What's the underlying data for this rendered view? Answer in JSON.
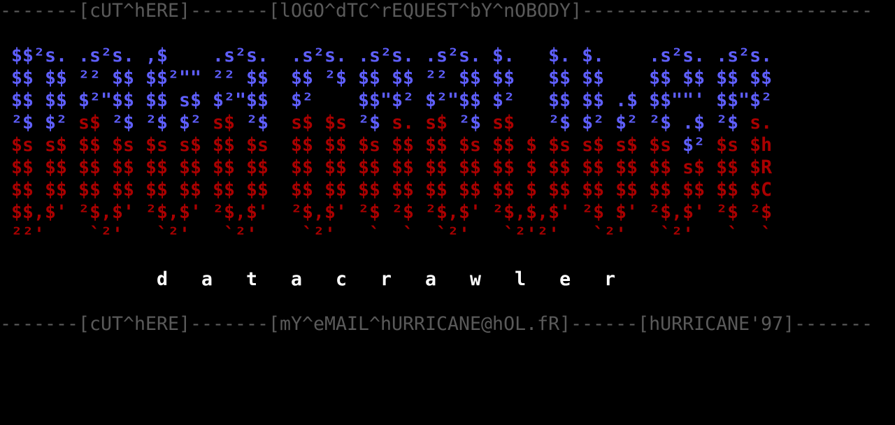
{
  "colors": {
    "blue": "#5f5fff",
    "red": "#aa0000",
    "gray": "#5a5a5a",
    "white": "#ffffff",
    "background": "#000000"
  },
  "header_line": "-------[cUT^hERE]-------[lOGO^dTC^rEQUEST^bY^nOBODY]--------------------------",
  "art": {
    "rows": [
      [
        {
          "t": " $$²s. .s²s. ,$    .s²s.  .s²s. .s²s. .s²s. $.   $. $.    .s²s. .s²s.",
          "c": "blue"
        }
      ],
      [
        {
          "t": " $$ $$ ²² $$ $$²\"\" ²² $$  $$ ²$ $$ $$ ²² $$ $$   $$ $$    $$ $$ $$ $$",
          "c": "blue"
        }
      ],
      [
        {
          "t": " $$ $$ $²\"$$ $$ s$ $²\"$$  $²    $$\"$² $²\"$$ $²   $$ $$ .$ $$\"\"' $$\"$²",
          "c": "blue"
        }
      ],
      [
        {
          "t": " ²$ $² ",
          "c": "blue"
        },
        {
          "t": "s$",
          "c": "red"
        },
        {
          "t": " ²$ ²$ $² ",
          "c": "blue"
        },
        {
          "t": "s$",
          "c": "red"
        },
        {
          "t": " ²$  ",
          "c": "blue"
        },
        {
          "t": "s$ $s",
          "c": "red"
        },
        {
          "t": " ²$ ",
          "c": "blue"
        },
        {
          "t": "s. s$",
          "c": "red"
        },
        {
          "t": " ²$ ",
          "c": "blue"
        },
        {
          "t": "s$",
          "c": "red"
        },
        {
          "t": "   ²$ $² $² ²$ .$ ²$ ",
          "c": "blue"
        },
        {
          "t": "s.",
          "c": "red"
        }
      ],
      [
        {
          "t": " $s s$ $$ $s $s s$ $$ $s  $$ $$ $s $$ $$ $s $$ $ $s s$ s$ $s ",
          "c": "red"
        },
        {
          "t": "$²",
          "c": "blue"
        },
        {
          "t": " $s $h",
          "c": "red"
        }
      ],
      [
        {
          "t": " $$ $$ $$ $$ $$ $$ $$ $$  $$ $$ $$ $$ $$ $$ $$ $ $$ $$ $$ $$ s$ $$ $R",
          "c": "red"
        }
      ],
      [
        {
          "t": " $$ $$ $$ $$ $$ $$ $$ $$  $$ $$ $$ $$ $$ $$ $$ $ $$ $$ $$ $$ $$ $$ $C",
          "c": "red"
        }
      ],
      [
        {
          "t": " $$,$' ²$,$' ²$,$' ²$,$'  ²$,$' ²$ ²$ ²$,$' ²$,$,$' ²$ $' ²$,$' ²$ ²$",
          "c": "red"
        }
      ],
      [
        {
          "t": " ²²'    `²'   `²'   `²'    `²'   `  `  `²'   `²'²'   `²'   `²'   `  `",
          "c": "red"
        }
      ]
    ]
  },
  "subtitle": "              d   a   t   a   c   r   a   w   l   e   r",
  "footer_line": "-------[cUT^hERE]-------[mY^eMAIL^hURRICANE@hOL.fR]------[hURRICANE'97]-------"
}
